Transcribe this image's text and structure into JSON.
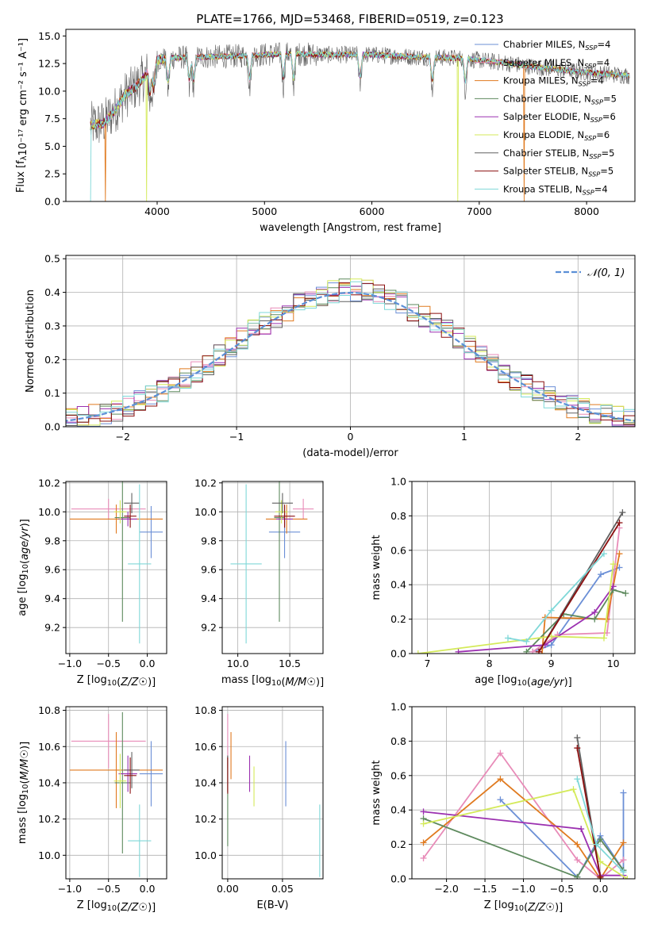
{
  "figure": {
    "title": "PLATE=1766, MJD=53468, FIBERID=0519, z=0.123"
  },
  "colors": {
    "chabrier_miles": "#6b8fd6",
    "salpeter_miles": "#e88bb8",
    "kroupa_miles": "#e07a1f",
    "chabrier_elodie": "#5e8a5e",
    "salpeter_elodie": "#9b30b0",
    "kroupa_elodie": "#d4ea5a",
    "chabrier_stelib": "#606060",
    "salpeter_stelib": "#8b0f0f",
    "kroupa_stelib": "#7fd8d8",
    "gaussian": "#5b8fd6",
    "grid": "#b0b0b0"
  },
  "chart_data": [
    {
      "id": "spectrum",
      "type": "line",
      "title": "PLATE=1766, MJD=53468, FIBERID=0519, z=0.123",
      "xlabel": "wavelength [Angstrom, rest frame]",
      "ylabel": "Flux [fλ10⁻¹⁷ erg cm⁻² s⁻¹ A⁻¹]",
      "xlim": [
        3150,
        8450
      ],
      "ylim": [
        0,
        15.6
      ],
      "xticks": [
        "4000",
        "5000",
        "6000",
        "7000",
        "8000"
      ],
      "yticks": [
        "0.0",
        "2.5",
        "5.0",
        "7.5",
        "10.0",
        "12.5",
        "15.0"
      ],
      "grid": false,
      "legend_position": "top-right",
      "legend": [
        "Chabrier MILES, N_SSP=4",
        "Salpeter MILES, N_SSP=4",
        "Kroupa MILES, N_SSP=4",
        "Chabrier ELODIE, N_SSP=5",
        "Salpeter ELODIE, N_SSP=6",
        "Kroupa ELODIE, N_SSP=6",
        "Chabrier STELIB, N_SSP=5",
        "Salpeter STELIB, N_SSP=5",
        "Kroupa STELIB, N_SSP=4"
      ],
      "continuum": {
        "x": [
          3380,
          3500,
          3600,
          3700,
          3800,
          3900,
          3950,
          4000,
          4100,
          4300,
          4500,
          4800,
          5200,
          5600,
          6000,
          6400,
          6800,
          7200,
          7600,
          8000,
          8400
        ],
        "y": [
          6.9,
          7.1,
          8.2,
          9.6,
          10.4,
          11.5,
          12.1,
          12.8,
          13.0,
          13.1,
          13.1,
          13.2,
          13.4,
          13.3,
          13.3,
          13.1,
          13.0,
          12.6,
          12.1,
          11.7,
          11.4
        ]
      },
      "model_drops": [
        {
          "model": "Kroupa STELIB",
          "x": 3380,
          "y": 0
        },
        {
          "model": "Kroupa MILES",
          "x": 3520,
          "y": 0
        },
        {
          "model": "Kroupa ELODIE",
          "x": 3900,
          "y": 0
        },
        {
          "model": "Kroupa ELODIE",
          "x": 6800,
          "y": 0
        },
        {
          "model": "Kroupa MILES",
          "x": 7420,
          "y": 0
        }
      ]
    },
    {
      "id": "residuals",
      "type": "histogram",
      "xlabel": "(data-model)/error",
      "ylabel": "Normed distribution",
      "xlim": [
        -2.5,
        2.5
      ],
      "ylim": [
        0,
        0.51
      ],
      "xticks": [
        "−2",
        "−1",
        "0",
        "1",
        "2"
      ],
      "yticks": [
        "0.0",
        "0.1",
        "0.2",
        "0.3",
        "0.4",
        "0.5"
      ],
      "grid": true,
      "bin_width": 0.1,
      "legend_position": "top-right",
      "legend": [
        "𝒩(0, 1)"
      ],
      "reference_curve": "standard normal N(0,1)"
    },
    {
      "id": "age_vs_Z",
      "type": "errorbar",
      "xlabel": "Z [log10(Z/Z☉)]",
      "ylabel": "age  [log10(age/yr)]",
      "xlim": [
        -1.05,
        0.25
      ],
      "ylim": [
        9.02,
        10.21
      ],
      "xticks": [
        "−1.0",
        "−0.5",
        "0.0"
      ],
      "yticks": [
        "9.2",
        "9.4",
        "9.6",
        "9.8",
        "10.0",
        "10.2"
      ],
      "grid": true,
      "points": [
        {
          "model": "Chabrier MILES",
          "x": 0.05,
          "xerr": 0.15,
          "y": 9.86,
          "yerr": 0.18
        },
        {
          "model": "Salpeter MILES",
          "x": -0.5,
          "xerr": 0.48,
          "y": 10.02,
          "yerr": 0.07
        },
        {
          "model": "Kroupa MILES",
          "x": -0.4,
          "xerr": 0.6,
          "y": 9.95,
          "yerr": 0.1
        },
        {
          "model": "Chabrier ELODIE",
          "x": -0.32,
          "xerr": 0.1,
          "y": 9.96,
          "yerr": 0.72
        },
        {
          "model": "Salpeter ELODIE",
          "x": -0.25,
          "xerr": 0.12,
          "y": 9.95,
          "yerr": 0.05
        },
        {
          "model": "Kroupa ELODIE",
          "x": -0.35,
          "xerr": 0.08,
          "y": 10.0,
          "yerr": 0.08
        },
        {
          "model": "Chabrier STELIB",
          "x": -0.2,
          "xerr": 0.1,
          "y": 10.06,
          "yerr": 0.07
        },
        {
          "model": "Salpeter STELIB",
          "x": -0.22,
          "xerr": 0.08,
          "y": 9.97,
          "yerr": 0.08
        },
        {
          "model": "Kroupa STELIB",
          "x": -0.1,
          "xerr": 0.15,
          "y": 9.64,
          "yerr": 0.55
        }
      ]
    },
    {
      "id": "age_vs_mass",
      "type": "errorbar",
      "xlabel": "mass [log10(M/M☉)]",
      "ylabel": "",
      "xlim": [
        9.85,
        10.82
      ],
      "ylim": [
        9.02,
        10.21
      ],
      "xticks": [
        "10.0",
        "10.5"
      ],
      "yticks": [
        "9.2",
        "9.4",
        "9.6",
        "9.8",
        "10.0",
        "10.2"
      ],
      "grid": true,
      "points": [
        {
          "model": "Chabrier MILES",
          "x": 10.45,
          "xerr": 0.15,
          "y": 9.86,
          "yerr": 0.18
        },
        {
          "model": "Salpeter MILES",
          "x": 10.63,
          "xerr": 0.1,
          "y": 10.02,
          "yerr": 0.07
        },
        {
          "model": "Kroupa MILES",
          "x": 10.47,
          "xerr": 0.2,
          "y": 9.95,
          "yerr": 0.1
        },
        {
          "model": "Chabrier ELODIE",
          "x": 10.4,
          "xerr": 0.05,
          "y": 9.96,
          "yerr": 0.72
        },
        {
          "model": "Salpeter ELODIE",
          "x": 10.45,
          "xerr": 0.08,
          "y": 9.95,
          "yerr": 0.05
        },
        {
          "model": "Kroupa ELODIE",
          "x": 10.42,
          "xerr": 0.06,
          "y": 10.0,
          "yerr": 0.08
        },
        {
          "model": "Chabrier STELIB",
          "x": 10.43,
          "xerr": 0.1,
          "y": 10.06,
          "yerr": 0.07
        },
        {
          "model": "Salpeter STELIB",
          "x": 10.45,
          "xerr": 0.1,
          "y": 9.97,
          "yerr": 0.08
        },
        {
          "model": "Kroupa STELIB",
          "x": 10.08,
          "xerr": 0.15,
          "y": 9.64,
          "yerr": 0.55
        }
      ]
    },
    {
      "id": "massweight_vs_age",
      "type": "line",
      "xlabel": "age  [log10(age/yr)]",
      "ylabel": "mass weight",
      "xlim": [
        6.75,
        10.35
      ],
      "ylim": [
        0,
        1.0
      ],
      "xticks": [
        "7",
        "8",
        "9",
        "10"
      ],
      "yticks": [
        "0.0",
        "0.2",
        "0.4",
        "0.6",
        "0.8",
        "1.0"
      ],
      "grid": true,
      "series": [
        {
          "model": "Chabrier MILES",
          "x": [
            8.7,
            9.0,
            9.8,
            10.1
          ],
          "y": [
            0.01,
            0.05,
            0.46,
            0.5
          ]
        },
        {
          "model": "Salpeter MILES",
          "x": [
            8.7,
            9.1,
            9.9,
            10.1
          ],
          "y": [
            0.01,
            0.11,
            0.12,
            0.73
          ]
        },
        {
          "model": "Kroupa MILES",
          "x": [
            8.85,
            8.9,
            9.9,
            10.1
          ],
          "y": [
            0.0,
            0.21,
            0.2,
            0.58
          ]
        },
        {
          "model": "Chabrier ELODIE",
          "x": [
            8.6,
            9.2,
            9.7,
            10.0,
            10.2
          ],
          "y": [
            0.01,
            0.23,
            0.2,
            0.37,
            0.35
          ]
        },
        {
          "model": "Salpeter ELODIE",
          "x": [
            7.5,
            8.9,
            9.7,
            10.0
          ],
          "y": [
            0.01,
            0.05,
            0.24,
            0.39
          ]
        },
        {
          "model": "Kroupa ELODIE",
          "x": [
            6.85,
            9.0,
            9.85,
            10.0
          ],
          "y": [
            0.0,
            0.1,
            0.09,
            0.52
          ]
        },
        {
          "model": "Chabrier STELIB",
          "x": [
            8.8,
            10.15
          ],
          "y": [
            0.01,
            0.82
          ]
        },
        {
          "model": "Salpeter STELIB",
          "x": [
            8.8,
            10.1
          ],
          "y": [
            0.01,
            0.76
          ]
        },
        {
          "model": "Kroupa STELIB",
          "x": [
            8.3,
            8.6,
            9.0,
            9.85
          ],
          "y": [
            0.09,
            0.07,
            0.25,
            0.58
          ]
        }
      ]
    },
    {
      "id": "mass_vs_Z",
      "type": "errorbar",
      "xlabel": "Z [log10(Z/Z☉)]",
      "ylabel": "mass [log10(M/M☉)]",
      "xlim": [
        -1.05,
        0.25
      ],
      "ylim": [
        9.87,
        10.82
      ],
      "xticks": [
        "−1.0",
        "−0.5",
        "0.0"
      ],
      "yticks": [
        "10.0",
        "10.2",
        "10.4",
        "10.6",
        "10.8"
      ],
      "grid": true,
      "points": [
        {
          "model": "Chabrier MILES",
          "x": 0.05,
          "xerr": 0.15,
          "y": 10.45,
          "yerr": 0.18
        },
        {
          "model": "Salpeter MILES",
          "x": -0.5,
          "xerr": 0.48,
          "y": 10.63,
          "yerr": 0.15
        },
        {
          "model": "Kroupa MILES",
          "x": -0.4,
          "xerr": 0.6,
          "y": 10.47,
          "yerr": 0.21
        },
        {
          "model": "Chabrier ELODIE",
          "x": -0.32,
          "xerr": 0.1,
          "y": 10.4,
          "yerr": 0.39
        },
        {
          "model": "Salpeter ELODIE",
          "x": -0.25,
          "xerr": 0.12,
          "y": 10.45,
          "yerr": 0.1
        },
        {
          "model": "Kroupa ELODIE",
          "x": -0.35,
          "xerr": 0.08,
          "y": 10.41,
          "yerr": 0.15
        },
        {
          "model": "Chabrier STELIB",
          "x": -0.2,
          "xerr": 0.1,
          "y": 10.47,
          "yerr": 0.1
        },
        {
          "model": "Salpeter STELIB",
          "x": -0.22,
          "xerr": 0.08,
          "y": 10.44,
          "yerr": 0.1
        },
        {
          "model": "Kroupa STELIB",
          "x": -0.1,
          "xerr": 0.15,
          "y": 10.08,
          "yerr": 0.2
        }
      ]
    },
    {
      "id": "mass_vs_ebv",
      "type": "errorbar",
      "xlabel": "E(B-V)",
      "ylabel": "",
      "xlim": [
        -0.005,
        0.087
      ],
      "ylim": [
        9.87,
        10.82
      ],
      "xticks": [
        "0.00",
        "0.05"
      ],
      "yticks": [
        "10.0",
        "10.2",
        "10.4",
        "10.6",
        "10.8"
      ],
      "grid": true,
      "points": [
        {
          "model": "Chabrier MILES",
          "x": 0.053,
          "xerr": 0,
          "y": 10.45,
          "yerr": 0.18
        },
        {
          "model": "Salpeter MILES",
          "x": 0.0,
          "xerr": 0,
          "y": 10.63,
          "yerr": 0.15
        },
        {
          "model": "Kroupa MILES",
          "x": 0.003,
          "xerr": 0,
          "y": 10.55,
          "yerr": 0.13
        },
        {
          "model": "Chabrier ELODIE",
          "x": 0.0,
          "xerr": 0,
          "y": 10.3,
          "yerr": 0.25
        },
        {
          "model": "Salpeter ELODIE",
          "x": 0.02,
          "xerr": 0,
          "y": 10.45,
          "yerr": 0.1
        },
        {
          "model": "Kroupa ELODIE",
          "x": 0.024,
          "xerr": 0,
          "y": 10.38,
          "yerr": 0.11
        },
        {
          "model": "Chabrier STELIB",
          "x": 0.0,
          "xerr": 0,
          "y": 10.45,
          "yerr": 0.1
        },
        {
          "model": "Salpeter STELIB",
          "x": 0.0,
          "xerr": 0,
          "y": 10.44,
          "yerr": 0.1
        },
        {
          "model": "Kroupa STELIB",
          "x": 0.084,
          "xerr": 0,
          "y": 10.08,
          "yerr": 0.2
        }
      ]
    },
    {
      "id": "massweight_vs_Z",
      "type": "line",
      "xlabel": "Z [log10(Z/Z☉)]",
      "ylabel": "mass weight",
      "xlim": [
        -2.45,
        0.45
      ],
      "ylim": [
        0,
        1.0
      ],
      "xticks": [
        "−2.0",
        "−1.5",
        "−1.0",
        "−0.5",
        "0.0"
      ],
      "yticks": [
        "0.0",
        "0.2",
        "0.4",
        "0.6",
        "0.8",
        "1.0"
      ],
      "grid": true,
      "series": [
        {
          "model": "Chabrier MILES",
          "x": [
            -1.3,
            -0.3,
            0.0,
            0.3,
            0.3
          ],
          "y": [
            0.46,
            0.01,
            0.25,
            0.05,
            0.5
          ]
        },
        {
          "model": "Salpeter MILES",
          "x": [
            -2.3,
            -1.3,
            -0.3,
            0.0,
            0.3
          ],
          "y": [
            0.12,
            0.73,
            0.11,
            0.0,
            0.11
          ]
        },
        {
          "model": "Kroupa MILES",
          "x": [
            -2.3,
            -1.3,
            -0.3,
            0.0,
            0.3
          ],
          "y": [
            0.21,
            0.58,
            0.2,
            0.0,
            0.21
          ]
        },
        {
          "model": "Chabrier ELODIE",
          "x": [
            -2.3,
            -0.3,
            0.0,
            0.3
          ],
          "y": [
            0.35,
            0.01,
            0.23,
            0.05
          ]
        },
        {
          "model": "Salpeter ELODIE",
          "x": [
            -2.3,
            -0.25,
            0.0,
            0.3
          ],
          "y": [
            0.39,
            0.29,
            0.02,
            0.02
          ]
        },
        {
          "model": "Kroupa ELODIE",
          "x": [
            -2.3,
            -0.35,
            0.0,
            0.35
          ],
          "y": [
            0.32,
            0.52,
            0.1,
            0.0
          ]
        },
        {
          "model": "Chabrier STELIB",
          "x": [
            -0.3,
            0.0
          ],
          "y": [
            0.82,
            0.01
          ]
        },
        {
          "model": "Salpeter STELIB",
          "x": [
            -0.3,
            0.0
          ],
          "y": [
            0.76,
            0.01
          ]
        },
        {
          "model": "Kroupa STELIB",
          "x": [
            -0.3,
            -0.05,
            0.3
          ],
          "y": [
            0.58,
            0.2,
            0.04
          ]
        }
      ]
    }
  ]
}
